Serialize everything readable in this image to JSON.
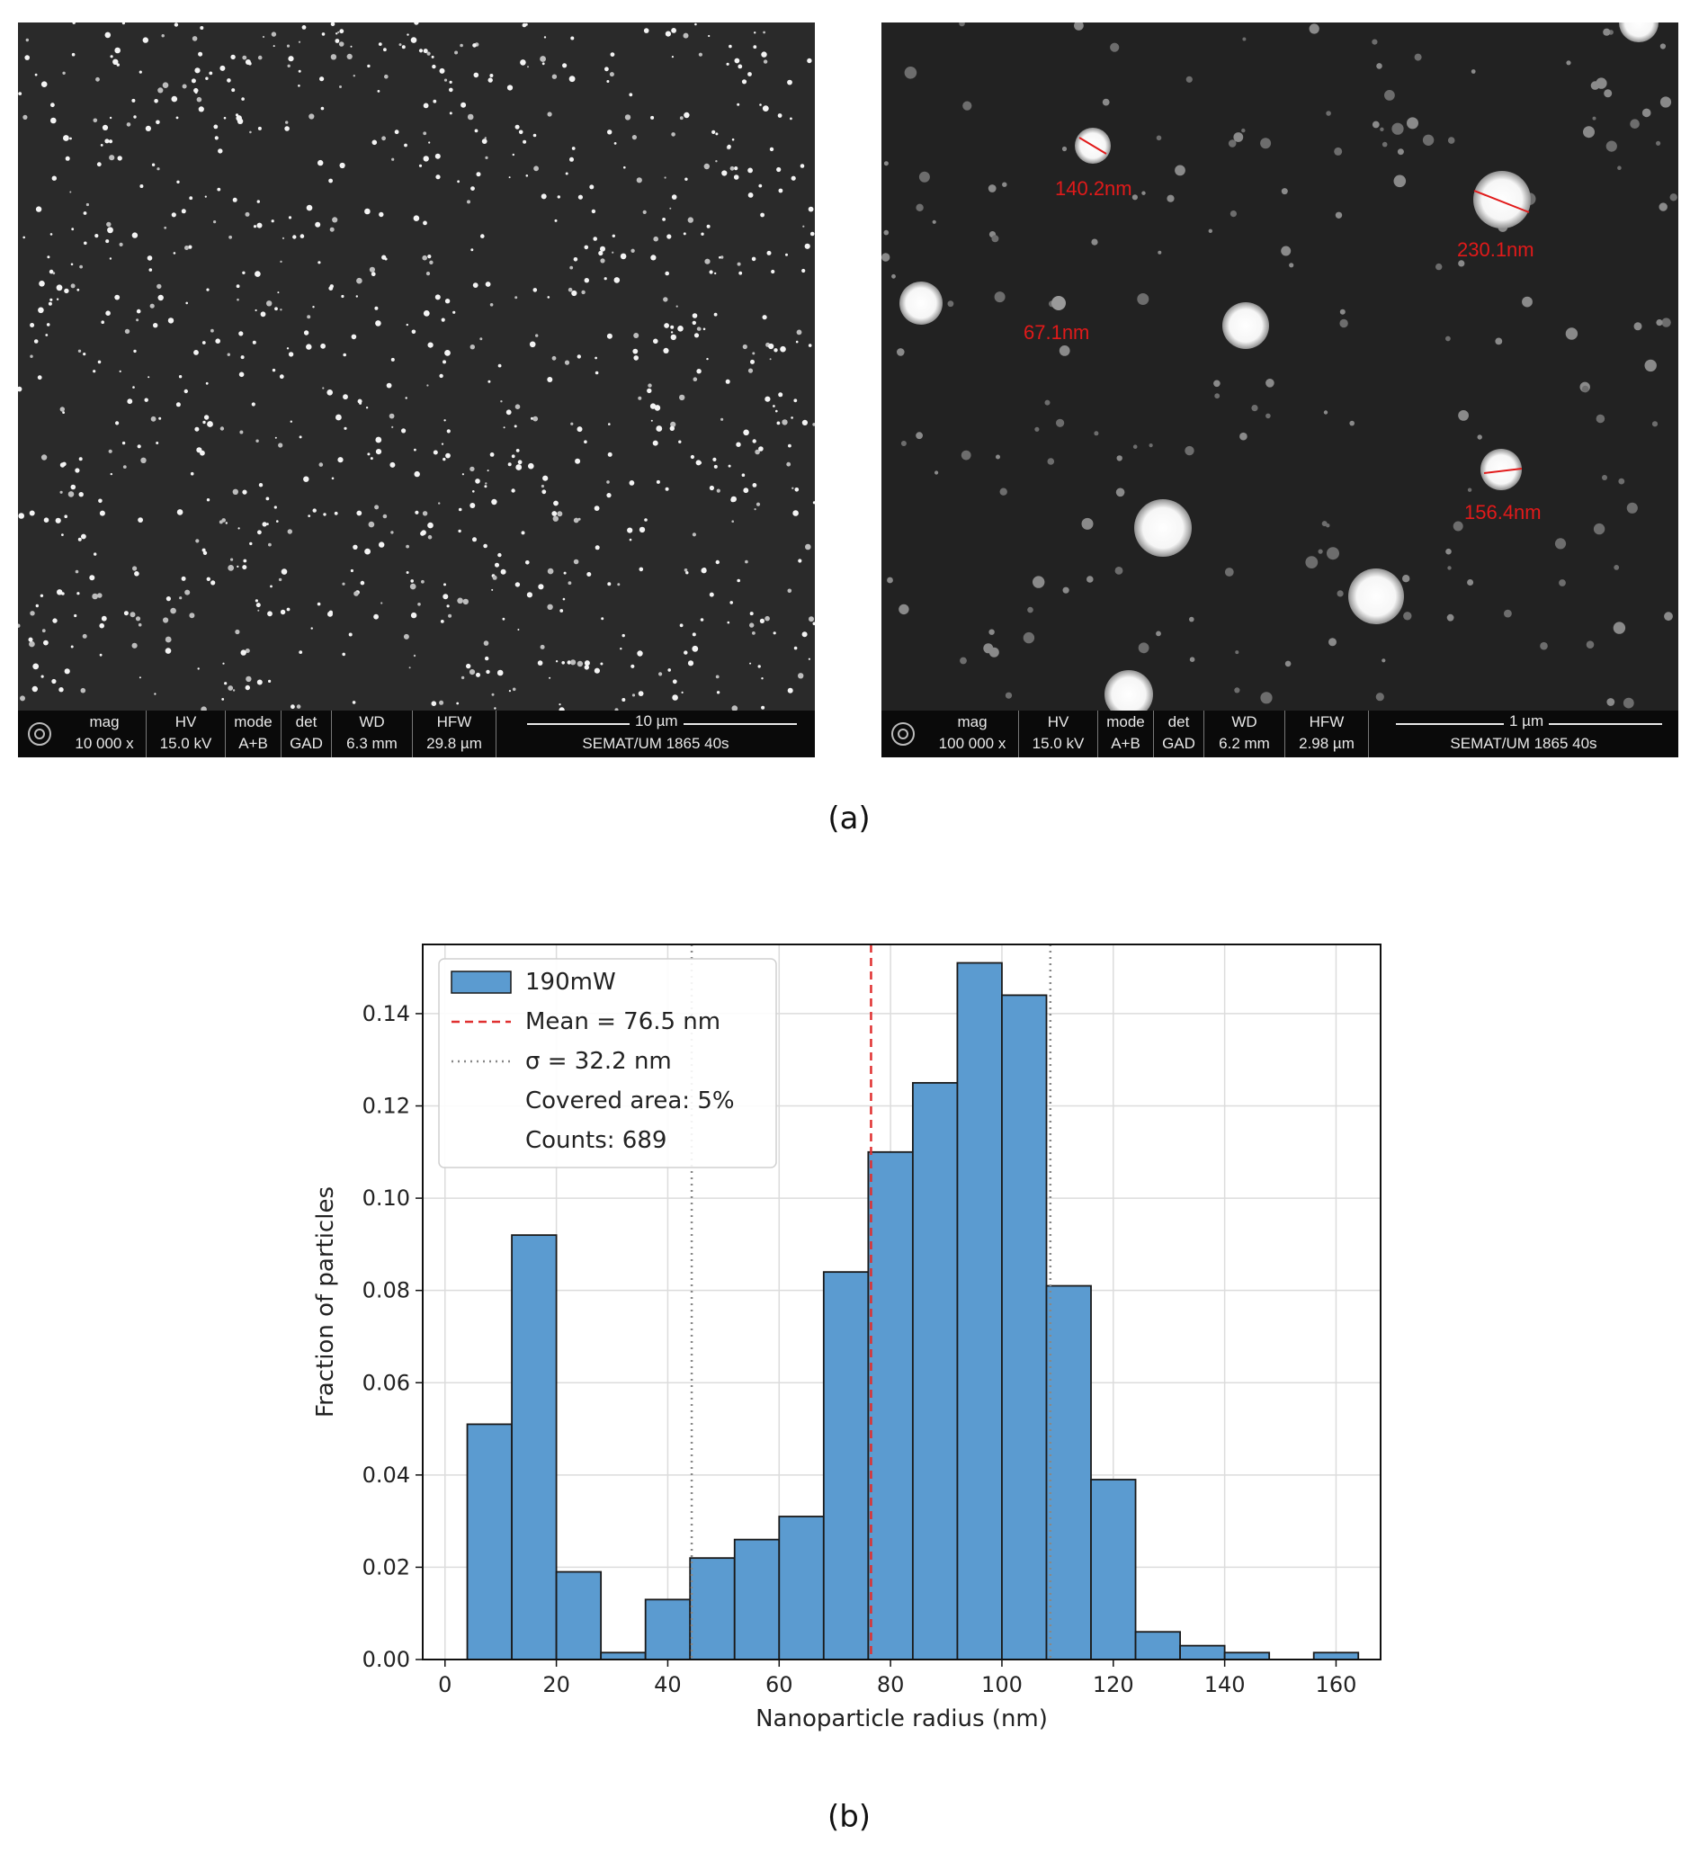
{
  "panel_a": {
    "caption": "(a)",
    "left": {
      "header": [
        "mag",
        "HV",
        "mode",
        "det",
        "WD",
        "HFW"
      ],
      "values": [
        "10 000 x",
        "15.0 kV",
        "A+B",
        "GAD",
        "6.3 mm",
        "29.8 µm"
      ],
      "scale_bar": "10 µm",
      "footer": "SEMAT/UM  1865 40s"
    },
    "right": {
      "header": [
        "mag",
        "HV",
        "mode",
        "det",
        "WD",
        "HFW"
      ],
      "values": [
        "100 000 x",
        "15.0 kV",
        "A+B",
        "GAD",
        "6.2 mm",
        "2.98 µm"
      ],
      "scale_bar": "1 µm",
      "footer": "SEMAT/UM  1865 40s",
      "measurements": [
        "140.2nm",
        "230.1nm",
        "67.1nm",
        "156.4nm"
      ],
      "measurement_color": "#e11a1a"
    }
  },
  "panel_b": {
    "caption": "(b)"
  },
  "chart_data": {
    "type": "bar",
    "xlabel": "Nanoparticle radius (nm)",
    "ylabel": "Fraction of particles",
    "xlim": [
      -4,
      168
    ],
    "ylim": [
      0,
      0.155
    ],
    "xticks": [
      0,
      20,
      40,
      60,
      80,
      100,
      120,
      140,
      160
    ],
    "yticks": [
      0.0,
      0.02,
      0.04,
      0.06,
      0.08,
      0.1,
      0.12,
      0.14
    ],
    "ytick_labels": [
      "0.00",
      "0.02",
      "0.04",
      "0.06",
      "0.08",
      "0.10",
      "0.12",
      "0.14"
    ],
    "grid": true,
    "bar_color": "#5b9bd0",
    "bin_edges": [
      4,
      12,
      20,
      28,
      36,
      44,
      52,
      60,
      68,
      76,
      84,
      92,
      100,
      108,
      116,
      124,
      132,
      140,
      148,
      156,
      164
    ],
    "series": [
      {
        "name": "190mW",
        "values": [
          0.051,
          0.092,
          0.019,
          0.0015,
          0.013,
          0.022,
          0.026,
          0.031,
          0.084,
          0.11,
          0.125,
          0.151,
          0.144,
          0.081,
          0.039,
          0.006,
          0.003,
          0.0015,
          0.0,
          0.0015
        ]
      }
    ],
    "mean": 76.5,
    "mean_color": "#e03030",
    "sigma": 32.2,
    "sigma_lines": [
      44.3,
      108.7
    ],
    "sigma_color": "#888888",
    "legend": {
      "position": "upper-left",
      "entries": [
        "190mW",
        "Mean = 76.5 nm",
        "σ = 32.2 nm",
        "Covered area: 5%",
        "Counts: 689"
      ]
    }
  }
}
